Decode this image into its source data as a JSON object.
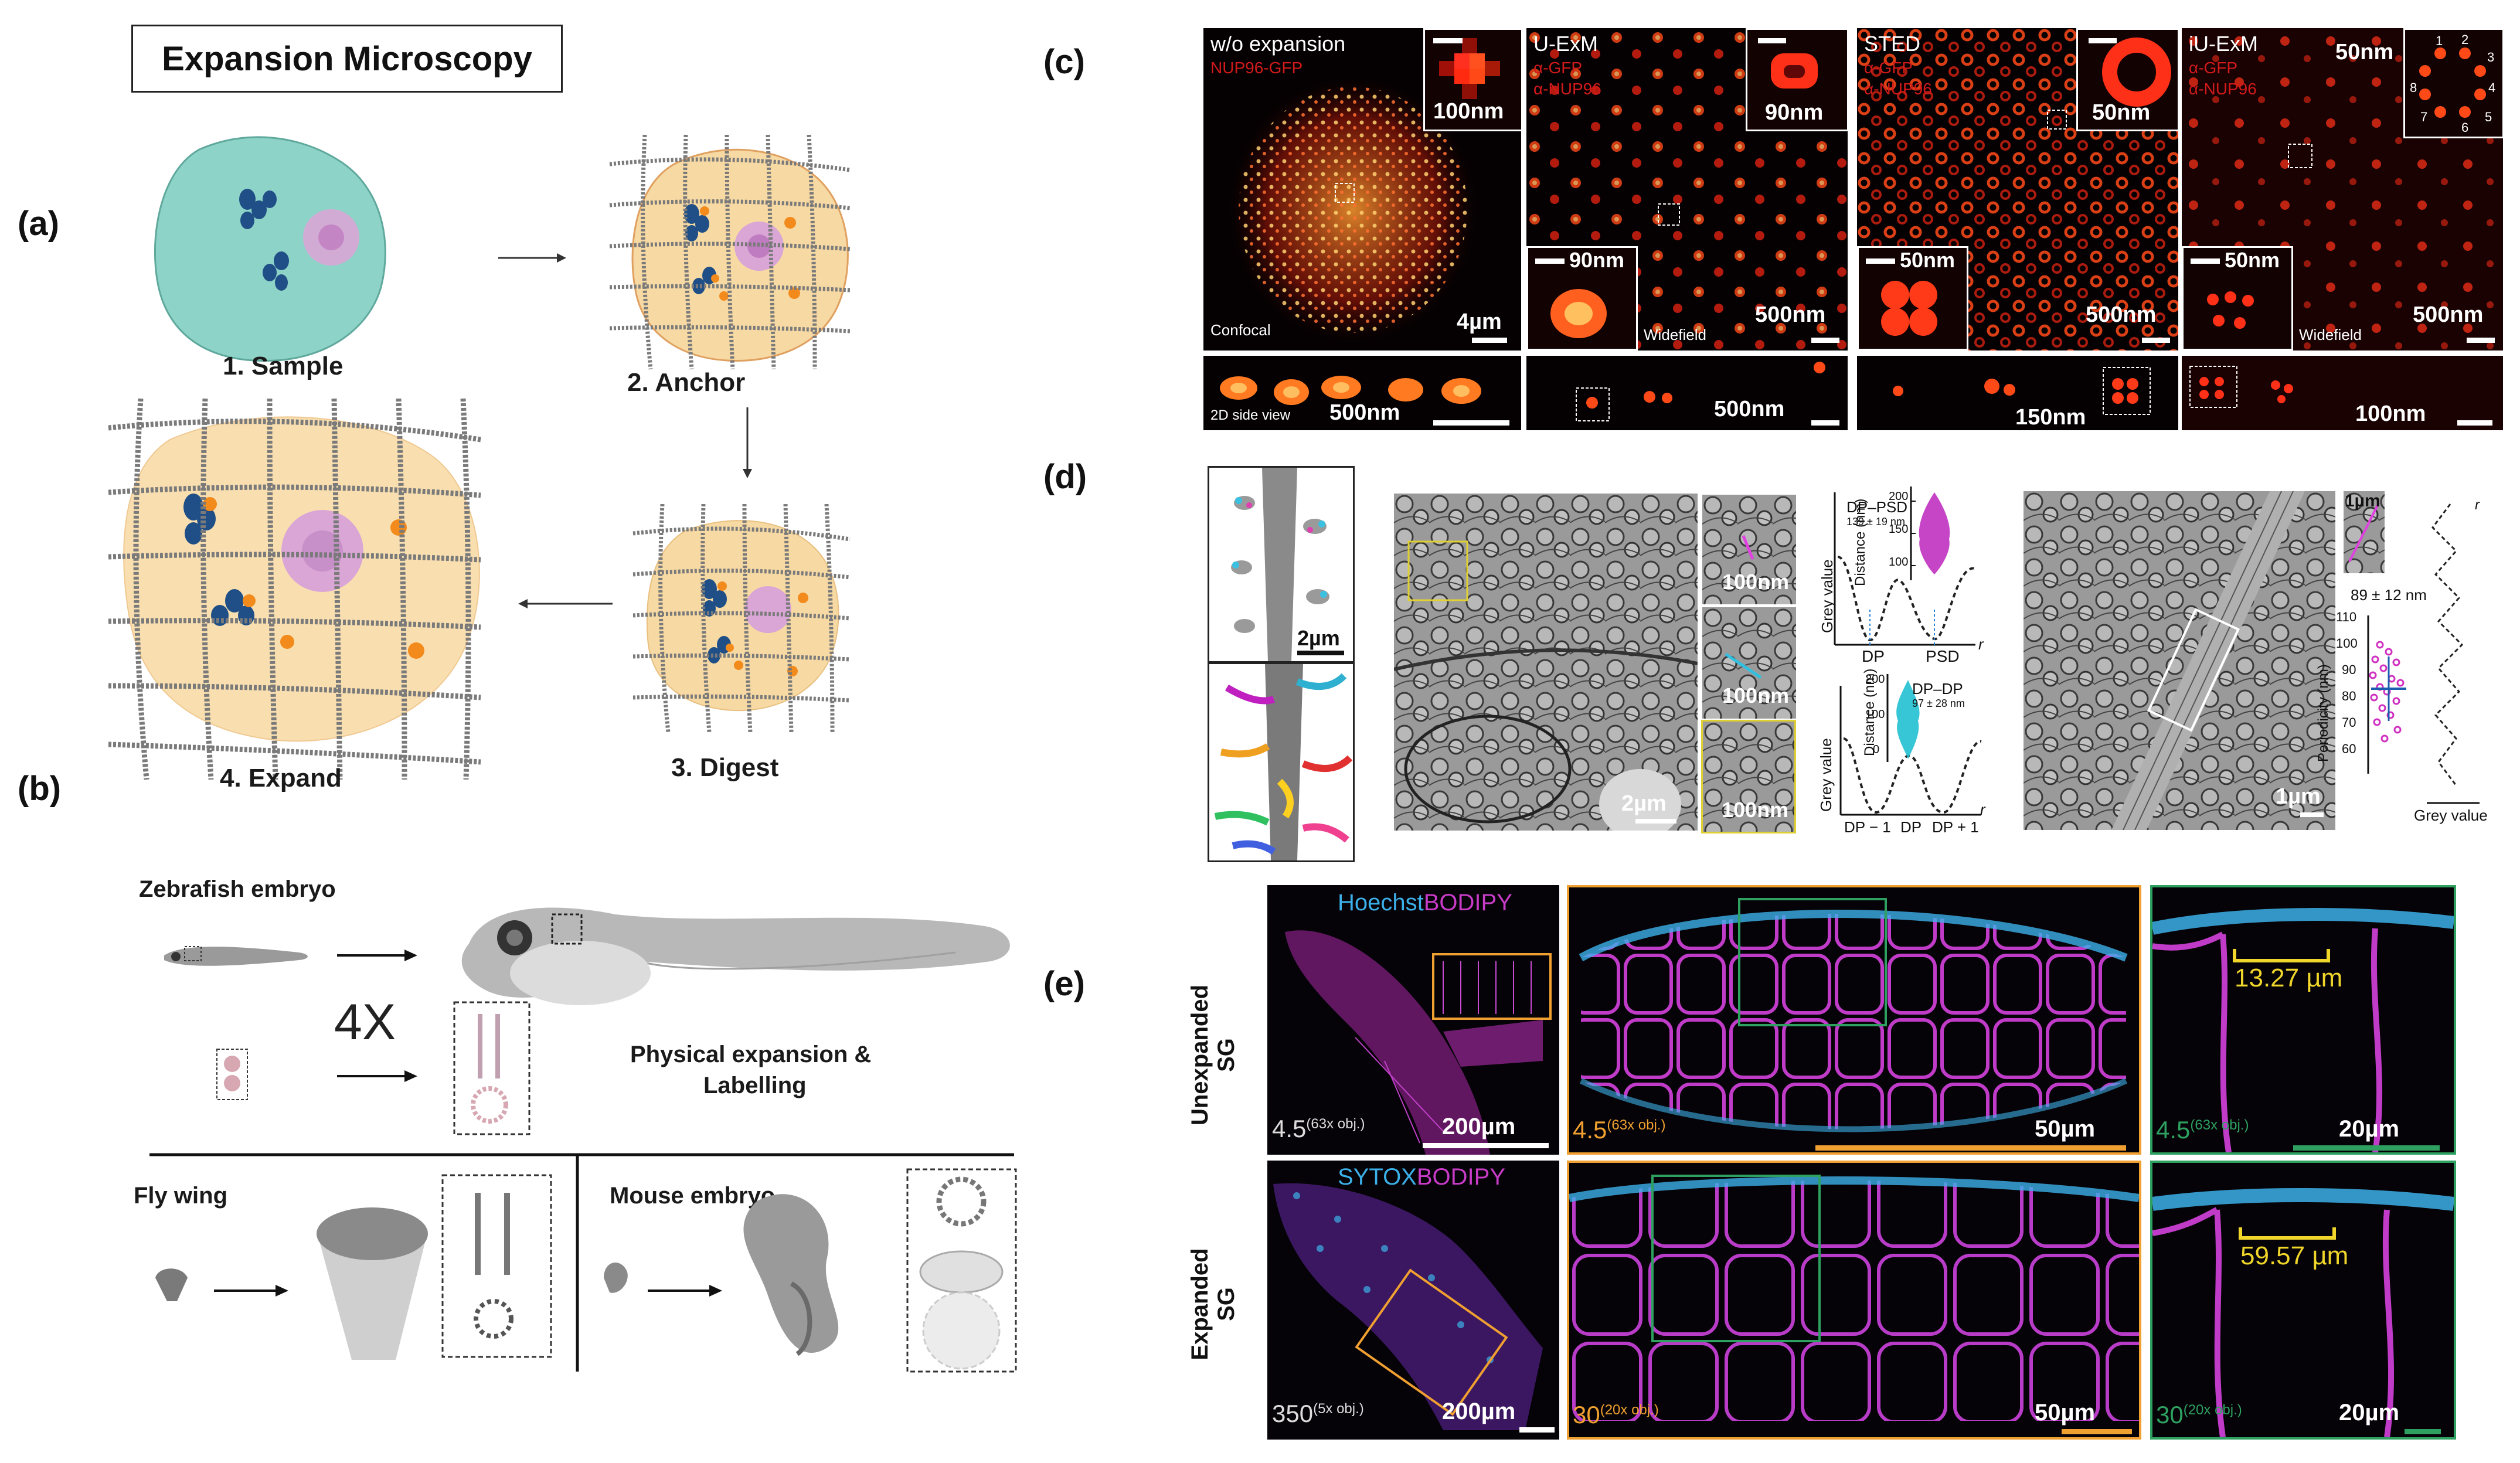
{
  "title": "Expansion Microscopy",
  "panel_labels": {
    "a": "(a)",
    "b": "(b)",
    "c": "(c)",
    "d": "(d)",
    "e": "(e)"
  },
  "panel_a": {
    "steps": [
      "1. Sample",
      "2. Anchor",
      "3. Digest",
      "4. Expand"
    ]
  },
  "panel_b": {
    "zebrafish": "Zebrafish embryo",
    "factor": "4X",
    "physical_line1": "Physical expansion &",
    "physical_line2": "Labelling",
    "fly_wing": "Fly wing",
    "mouse_embryo": "Mouse embryo"
  },
  "panel_c": {
    "cols": [
      {
        "title": "w/o expansion",
        "stain1": "NUP96-GFP",
        "stain2": "",
        "inset_scale": "100nm",
        "bottom_label": "Confocal",
        "main_scale": "4µm",
        "side_scale": "500nm",
        "side_label": "2D side view",
        "lower_inset_scale": ""
      },
      {
        "title": "U-ExM",
        "stain1": "α-GFP",
        "stain2": "α-NUP96",
        "inset_scale": "90nm",
        "bottom_label": "Widefield",
        "main_scale": "500nm",
        "side_scale": "500nm",
        "side_label": "",
        "lower_inset_scale": "90nm"
      },
      {
        "title": "STED",
        "stain1": "α-GFP",
        "stain2": "α-NUP96",
        "inset_scale": "50nm",
        "bottom_label": "",
        "main_scale": "500nm",
        "side_scale": "150nm",
        "side_label": "",
        "lower_inset_scale": "50nm"
      },
      {
        "title": "iU-ExM",
        "stain1": "α-GFP",
        "stain2": "α-NUP96",
        "inset_scale": "50nm",
        "bottom_label": "Widefield",
        "main_scale": "500nm",
        "side_scale": "100nm",
        "side_label": "",
        "lower_inset_scale": "50nm",
        "corner_scale": "50nm",
        "nup_numbers": [
          "1",
          "2",
          "3",
          "4",
          "5",
          "6",
          "7",
          "8"
        ]
      }
    ]
  },
  "panel_d": {
    "dendrite_scale": "2µm",
    "em_scale": "2µm",
    "insets": [
      "100nm",
      "100nm",
      "100nm"
    ],
    "dp_psd_title": "DP–PSD",
    "dp_psd_value": "139 ± 19 nm",
    "dp_dp_title": "DP–DP",
    "dp_dp_value": "97 ± 28 nm",
    "distance_label": "Distance (nm)",
    "grey_value": "Grey value",
    "x_dp": "DP",
    "x_psd": "PSD",
    "x_dpm1": "DP − 1",
    "x_dpp1": "DP + 1",
    "r": "r",
    "axon_scale": "1µm",
    "axon_inset_scale": "1µm",
    "period_value": "89 ± 12 nm",
    "periodicity_label": "Periodicity (nm)",
    "period_ticks": [
      "110",
      "100",
      "90",
      "80",
      "70",
      "60"
    ],
    "d1_yticks": [
      "200",
      "150",
      "100"
    ],
    "d2_yticks": [
      "200",
      "100",
      "0"
    ]
  },
  "panel_e": {
    "row1_label_line1": "Unexpanded",
    "row1_label_line2": "SG",
    "row2_label_line1": "Expanded",
    "row2_label_line2": "SG",
    "stain_top": "Hoechst",
    "stain_top2": "BODIPY",
    "stain_bottom": "SYTOX",
    "stain_bottom2": "BODIPY",
    "row1": {
      "p1_mag": "4.5",
      "p1_obj": "(63x obj.)",
      "p1_scale": "200µm",
      "p2_mag": "4.5",
      "p2_obj": "(63x obj.)",
      "p2_scale": "50µm",
      "p3_mag": "4.5",
      "p3_obj": "(63x obj.)",
      "p3_scale": "20µm",
      "measure": "13.27 µm"
    },
    "row2": {
      "p1_mag": "350",
      "p1_obj": "(5x obj.)",
      "p1_scale": "200µm",
      "p2_mag": "30",
      "p2_obj": "(20x obj.)",
      "p2_scale": "50µm",
      "p3_mag": "30",
      "p3_obj": "(20x obj.)",
      "p3_scale": "20µm",
      "measure": "59.57 µm"
    }
  },
  "colors": {
    "cell": "#8ed3c8",
    "gel": "#f7d9a3",
    "orange": "#f28a1c",
    "blue": "#1f4f86",
    "pink": "#d9a6d6",
    "magenta": "#c83cc8",
    "cyan": "#3cb0e8",
    "yellow": "#f0d62a",
    "orangeframe": "#f0a030",
    "greenframe": "#2ea060"
  }
}
